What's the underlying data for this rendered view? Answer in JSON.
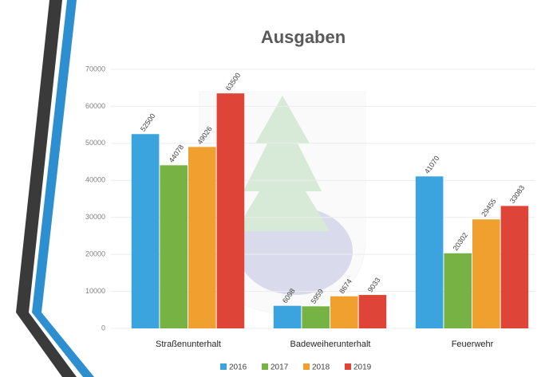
{
  "chart_data": {
    "type": "bar",
    "title": "Ausgaben",
    "categories": [
      "Straßenunterhalt",
      "Badeweiherunterhalt",
      "Feuerwehr"
    ],
    "series": [
      {
        "name": "2016",
        "color": "#3ba3dd",
        "values": [
          52500,
          6098,
          41070
        ]
      },
      {
        "name": "2017",
        "color": "#77b244",
        "values": [
          44078,
          5959,
          20302
        ]
      },
      {
        "name": "2018",
        "color": "#f0a02e",
        "values": [
          49026,
          8674,
          29455
        ]
      },
      {
        "name": "2019",
        "color": "#de4438",
        "values": [
          63500,
          9033,
          33083
        ]
      }
    ],
    "ylim": [
      0,
      70000
    ],
    "yticks": [
      0,
      10000,
      20000,
      30000,
      40000,
      50000,
      60000,
      70000
    ],
    "grid": true,
    "legend": "bottom"
  }
}
